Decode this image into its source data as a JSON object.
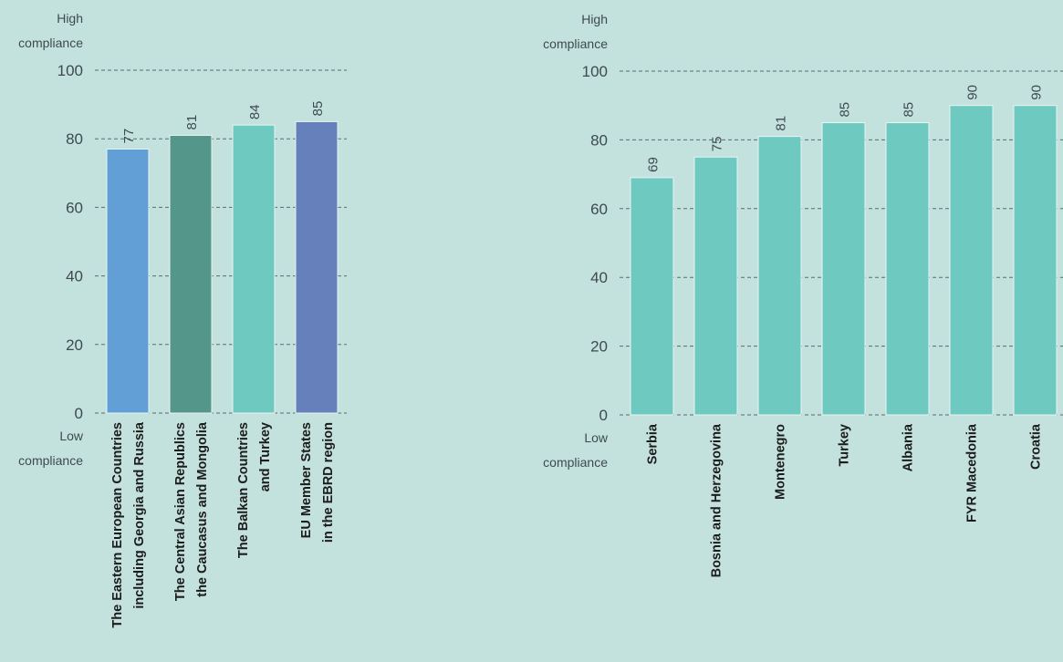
{
  "chart_data": [
    {
      "type": "bar",
      "title": "",
      "xlabel": "",
      "ylabel": "",
      "ylim": [
        0,
        100
      ],
      "yticks": [
        0,
        20,
        40,
        60,
        80,
        100
      ],
      "y_top_label": [
        "High",
        "compliance"
      ],
      "y_bottom_label": [
        "Low",
        "compliance"
      ],
      "grid": true,
      "categories": [
        [
          "The Eastern European Countries",
          "including Georgia and Russia"
        ],
        [
          "The Central Asian Republics",
          "the Caucasus and Mongolia"
        ],
        [
          "The Balkan Countries",
          "and Turkey"
        ],
        [
          "EU Member States",
          "in the EBRD region"
        ]
      ],
      "values": [
        77,
        81,
        84,
        85
      ],
      "colors": [
        "#619fd6",
        "#55968a",
        "#6ecac0",
        "#6580bb"
      ]
    },
    {
      "type": "bar",
      "title": "",
      "xlabel": "",
      "ylabel": "",
      "ylim": [
        0,
        100
      ],
      "yticks": [
        0,
        20,
        40,
        60,
        80,
        100
      ],
      "y_top_label": [
        "High",
        "compliance"
      ],
      "y_bottom_label": [
        "Low",
        "compliance"
      ],
      "grid": true,
      "categories": [
        [
          "Serbia"
        ],
        [
          "Bosnia and Herzegovina"
        ],
        [
          "Montenegro"
        ],
        [
          "Turkey"
        ],
        [
          "Albania"
        ],
        [
          "FYR Macedonia"
        ],
        [
          "Croatia"
        ]
      ],
      "values": [
        69,
        75,
        81,
        85,
        85,
        90,
        90
      ],
      "colors": [
        "#6ecac0",
        "#6ecac0",
        "#6ecac0",
        "#6ecac0",
        "#6ecac0",
        "#6ecac0",
        "#6ecac0"
      ]
    }
  ]
}
